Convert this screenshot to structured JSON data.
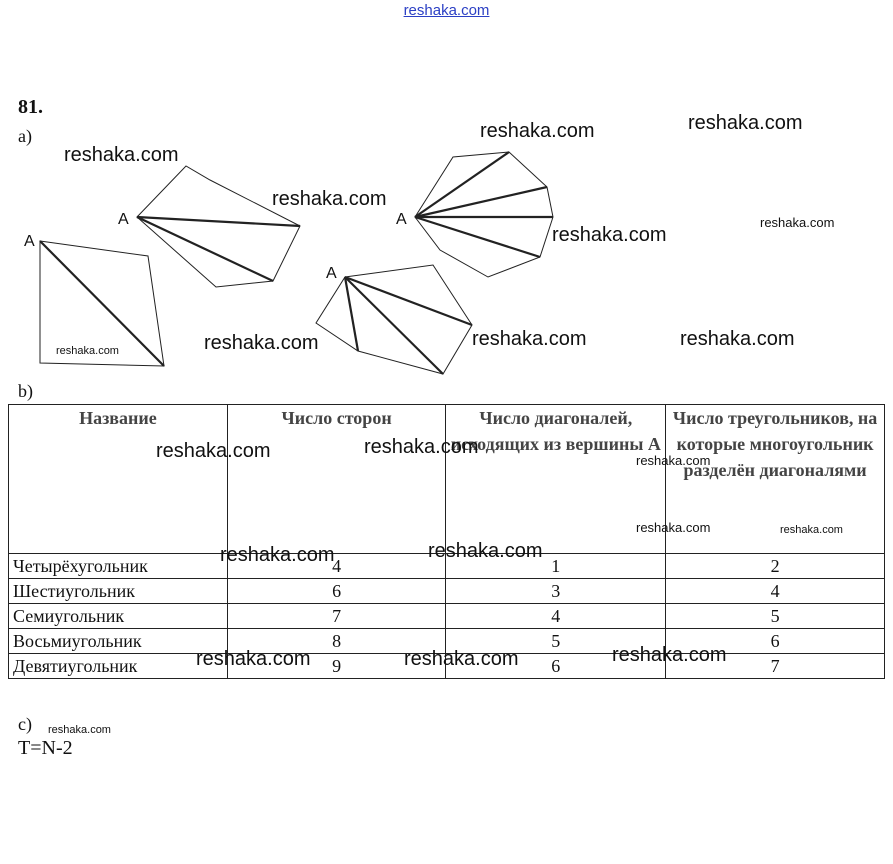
{
  "site_header": "reshaka.com",
  "exercise_number": "81.",
  "part_a_label": "a)",
  "part_b_label": "b)",
  "part_c_label": "c)",
  "vertex_label": "A",
  "table": {
    "headers": [
      "Название",
      "Число сторон",
      "Число диагоналей, исходящих из вершины А",
      "Число треугольников, на которые многоугольник разделён диагоналями"
    ],
    "rows": [
      [
        "Четырёхугольник",
        "4",
        "1",
        "2"
      ],
      [
        "Шестиугольник",
        "6",
        "3",
        "4"
      ],
      [
        "Семиугольник",
        "7",
        "4",
        "5"
      ],
      [
        "Восьмиугольник",
        "8",
        "5",
        "6"
      ],
      [
        "Девятиугольник",
        "9",
        "6",
        "7"
      ]
    ]
  },
  "formula": "T=N-2",
  "watermark": "reshaka.com"
}
